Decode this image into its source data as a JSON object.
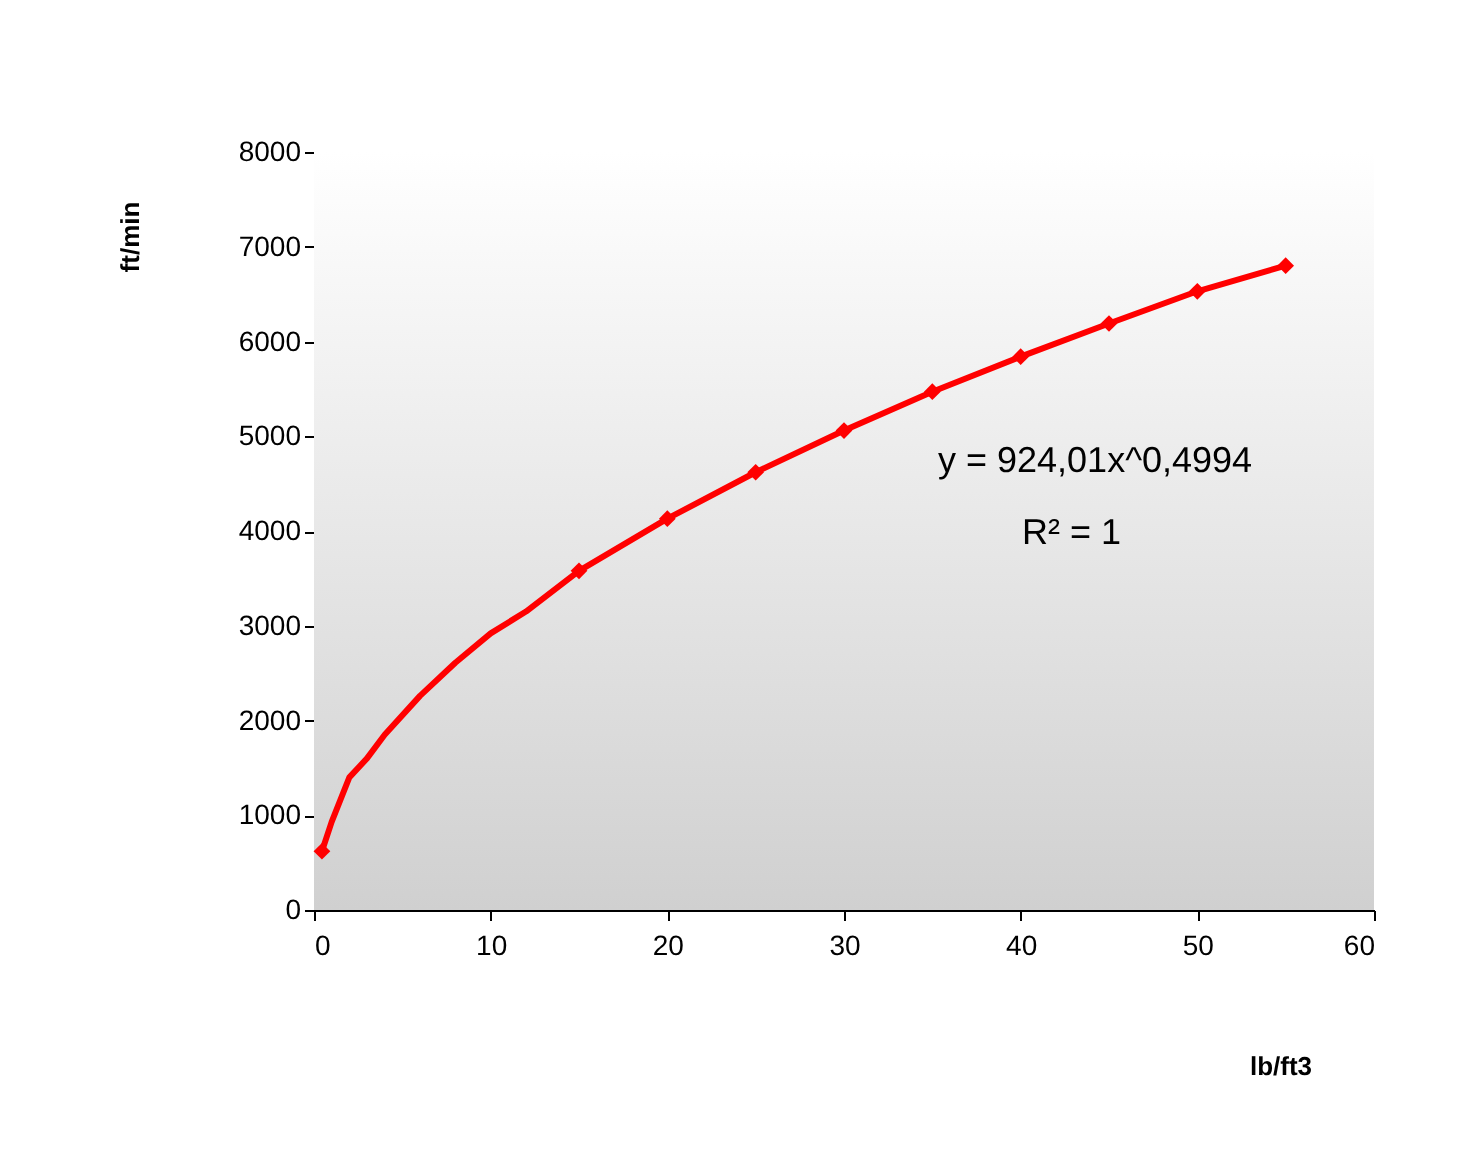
{
  "chart_data": {
    "type": "scatter",
    "xlabel": "lb/ft3",
    "ylabel": "ft/min",
    "annotations": [
      "y = 924,01x^0,4994",
      "R² = 1"
    ],
    "xlim": [
      0,
      60
    ],
    "xticks": [
      0,
      10,
      20,
      30,
      40,
      50,
      60
    ],
    "ylim": [
      0,
      8000
    ],
    "yticks": [
      0,
      1000,
      2000,
      3000,
      4000,
      5000,
      6000,
      7000,
      8000
    ],
    "grid": false,
    "series": [
      {
        "type": "line",
        "color": "#ff0000",
        "marker": "none",
        "x": [
          0.45,
          1,
          2,
          3,
          4,
          6,
          8,
          10,
          12,
          15,
          20,
          25,
          30,
          35,
          40,
          45,
          50,
          55
        ],
        "values": [
          620,
          930,
          1400,
          1600,
          1850,
          2260,
          2610,
          2920,
          3150,
          3580,
          4130,
          4620,
          5060,
          5470,
          5840,
          6190,
          6530,
          6800
        ]
      },
      {
        "color": "#ff0000",
        "marker": "diamond",
        "x": [
          0.45,
          15,
          20,
          25,
          30,
          35,
          40,
          45,
          50,
          55
        ],
        "values": [
          620,
          3580,
          4130,
          4620,
          5060,
          5470,
          5840,
          6190,
          6530,
          6800
        ]
      }
    ]
  }
}
